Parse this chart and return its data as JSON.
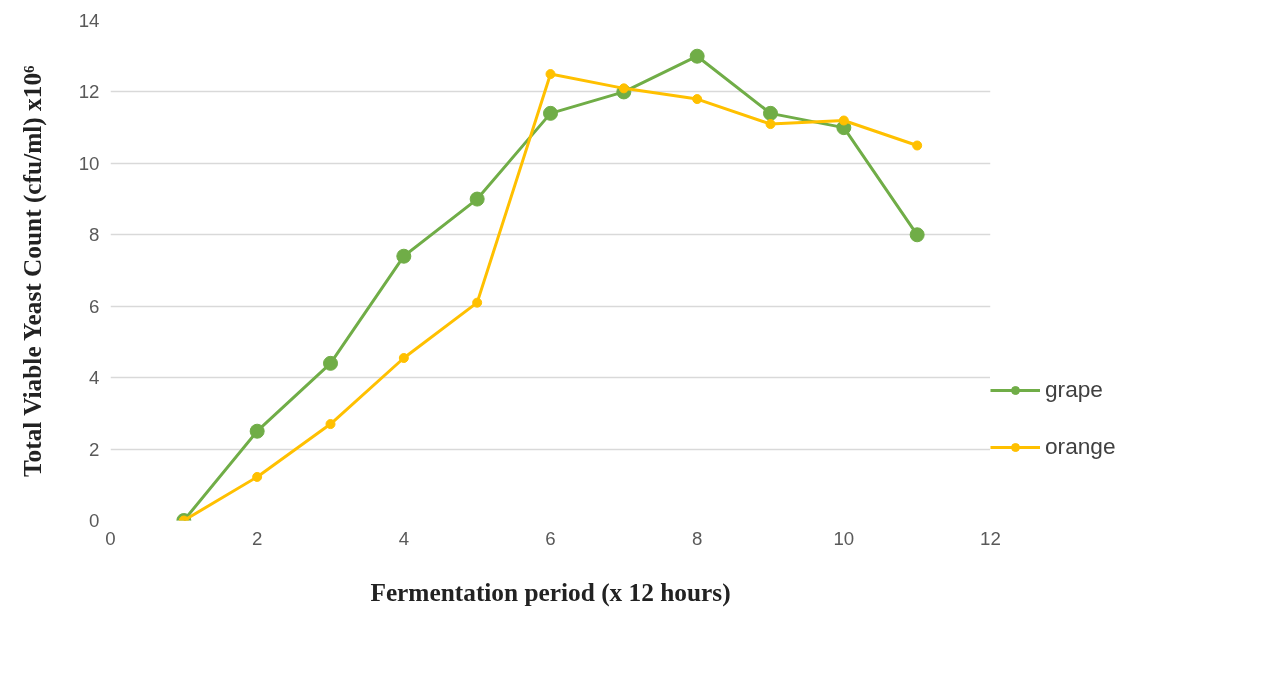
{
  "chart_data": {
    "type": "line",
    "xlabel": "Fermentation period (x 12 hours)",
    "ylabel": "Total Viable Yeast Count (cfu/ml) x10⁶",
    "x": [
      1,
      2,
      3,
      4,
      5,
      6,
      7,
      8,
      9,
      10,
      11
    ],
    "series": [
      {
        "name": "grape",
        "color": "#70ad47",
        "values": [
          0,
          2.5,
          4.4,
          7.4,
          9.0,
          11.4,
          12.0,
          13.0,
          11.4,
          11.0,
          8.0
        ]
      },
      {
        "name": "orange",
        "color": "#ffc000",
        "values": [
          0,
          1.22,
          2.7,
          4.55,
          6.1,
          12.5,
          12.1,
          11.8,
          11.1,
          11.2,
          10.5
        ]
      }
    ],
    "xlim": [
      0,
      12
    ],
    "xticks": [
      0,
      2,
      4,
      6,
      8,
      10,
      12
    ],
    "ylim": [
      0,
      14
    ],
    "yticks": [
      0,
      2,
      4,
      6,
      8,
      10,
      12,
      14
    ],
    "grid": "y",
    "legend": "right",
    "marker": "circle",
    "line_style": "solid"
  }
}
